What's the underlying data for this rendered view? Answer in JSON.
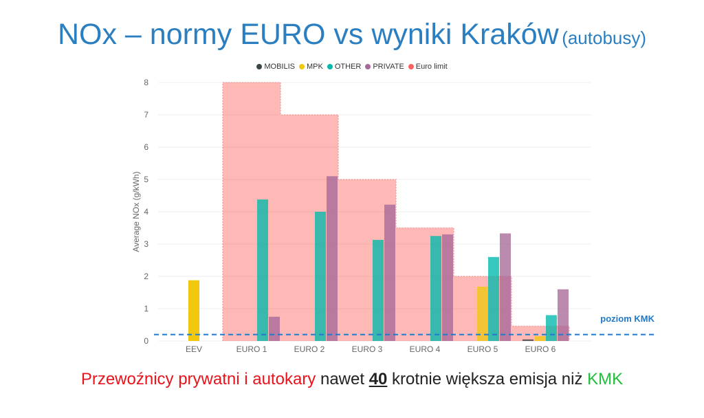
{
  "title": {
    "main": "NOx – normy EURO vs wyniki Kraków",
    "sub": "(autobusy)"
  },
  "footer": {
    "part1": "Przewoźnicy prywatni i autokary",
    "part2": " nawet ",
    "part3": "40",
    "part4": " krotnie większa emisja niż ",
    "part5": "KMK"
  },
  "chart_data": {
    "type": "bar",
    "ylabel": "Average NOx (g/kWh)",
    "xlabel": "",
    "ylim": [
      0,
      8
    ],
    "yticks": [
      "0",
      "1",
      "2",
      "3",
      "4",
      "5",
      "6",
      "7",
      "8"
    ],
    "grid": true,
    "legend_position": "top-center",
    "categories": [
      "EEV",
      "EURO 1",
      "EURO 2",
      "EURO 3",
      "EURO 4",
      "EURO 5",
      "EURO 6"
    ],
    "series": [
      {
        "name": "MOBILIS",
        "color": "#3a4548",
        "values": [
          null,
          null,
          null,
          null,
          null,
          null,
          0.05
        ]
      },
      {
        "name": "MPK",
        "color": "#f2c80f",
        "values": [
          1.88,
          null,
          null,
          null,
          null,
          1.68,
          0.15
        ]
      },
      {
        "name": "OTHER",
        "color": "#01b8aa",
        "values": [
          null,
          4.38,
          4.0,
          3.13,
          3.25,
          2.6,
          0.8
        ]
      },
      {
        "name": "PRIVATE",
        "color": "#a66999",
        "values": [
          null,
          0.75,
          5.1,
          4.22,
          3.3,
          3.33,
          1.6
        ]
      }
    ],
    "euro_limit": {
      "name": "Euro limit",
      "color": "#fd625e",
      "values": [
        null,
        8.0,
        7.0,
        5.0,
        3.5,
        2.0,
        0.46
      ]
    },
    "reference_line": {
      "label": "poziom KMK",
      "value": 0.2,
      "color": "#1f78c8"
    }
  }
}
